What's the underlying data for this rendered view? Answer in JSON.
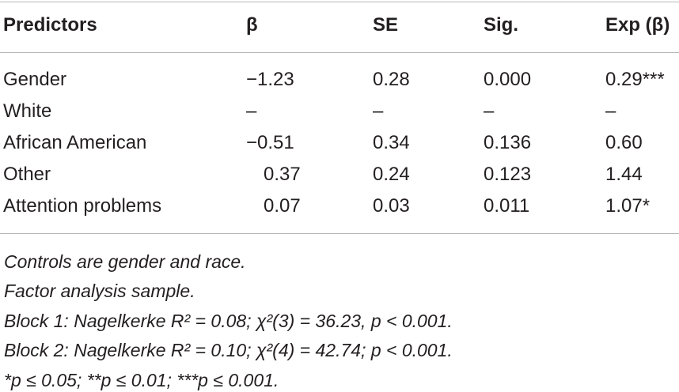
{
  "table": {
    "headers": {
      "predictors": "Predictors",
      "beta": "β",
      "se": "SE",
      "sig": "Sig.",
      "exp": "Exp (β)"
    },
    "rows": [
      {
        "predictor": "Gender",
        "beta": "−1.23",
        "se": "0.28",
        "sig": "0.000",
        "exp": "0.29***"
      },
      {
        "predictor": "White",
        "beta": "–",
        "se": "–",
        "sig": "–",
        "exp": "–"
      },
      {
        "predictor": "African American",
        "beta": "−0.51",
        "se": "0.34",
        "sig": "0.136",
        "exp": "0.60"
      },
      {
        "predictor": "Other",
        "beta": "0.37",
        "se": "0.24",
        "sig": "0.123",
        "exp": "1.44"
      },
      {
        "predictor": "Attention problems",
        "beta": "0.07",
        "se": "0.03",
        "sig": "0.011",
        "exp": "1.07*"
      }
    ]
  },
  "notes": [
    "Controls are gender and race.",
    "Factor analysis sample.",
    "Block 1: Nagelkerke R² = 0.08; χ²(3) = 36.23, p < 0.001.",
    "Block 2: Nagelkerke R² = 0.10; χ²(4) = 42.74; p < 0.001.",
    "*p ≤ 0.05; **p ≤ 0.01; ***p ≤ 0.001."
  ]
}
